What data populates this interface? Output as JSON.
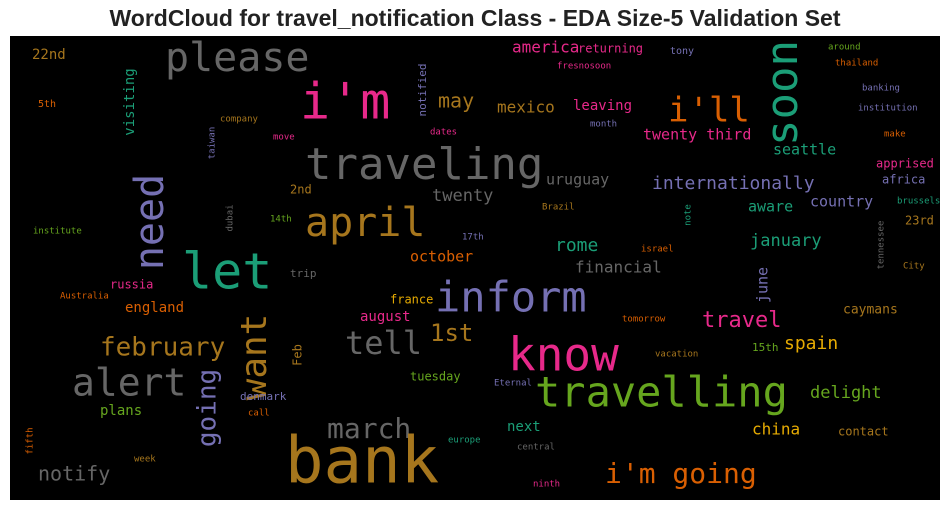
{
  "chart_data": {
    "type": "wordcloud",
    "title": "WordCloud for travel_notification Class - EDA Size-5 Validation Set",
    "background": "#000000",
    "words": [
      {
        "text": "please",
        "color": "#666666"
      },
      {
        "text": "i'm",
        "color": "#e7298a"
      },
      {
        "text": "traveling",
        "color": "#666666"
      },
      {
        "text": "soon",
        "color": "#1b9e77"
      },
      {
        "text": "i'll",
        "color": "#d95f02"
      },
      {
        "text": "may",
        "color": "#a6761d"
      },
      {
        "text": "mexico",
        "color": "#a6761d"
      },
      {
        "text": "america",
        "color": "#e7298a"
      },
      {
        "text": "returning",
        "color": "#e7298a"
      },
      {
        "text": "tony",
        "color": "#7570b3"
      },
      {
        "text": "around",
        "color": "#66a61e"
      },
      {
        "text": "thailand",
        "color": "#d95f02"
      },
      {
        "text": "22nd",
        "color": "#a6761d"
      },
      {
        "text": "5th",
        "color": "#d95f02"
      },
      {
        "text": "visiting",
        "color": "#1b9e77"
      },
      {
        "text": "company",
        "color": "#a6761d"
      },
      {
        "text": "taiwan",
        "color": "#7570b3"
      },
      {
        "text": "move",
        "color": "#e7298a"
      },
      {
        "text": "notified",
        "color": "#7570b3"
      },
      {
        "text": "fresnosoon",
        "color": "#e7298a"
      },
      {
        "text": "leaving",
        "color": "#e7298a"
      },
      {
        "text": "month",
        "color": "#7570b3"
      },
      {
        "text": "dates",
        "color": "#e7298a"
      },
      {
        "text": "banking",
        "color": "#7570b3"
      },
      {
        "text": "institution",
        "color": "#7570b3"
      },
      {
        "text": "make",
        "color": "#d95f02"
      },
      {
        "text": "twenty third",
        "color": "#e7298a"
      },
      {
        "text": "seattle",
        "color": "#1b9e77"
      },
      {
        "text": "apprised",
        "color": "#e7298a"
      },
      {
        "text": "africa",
        "color": "#7570b3"
      },
      {
        "text": "need",
        "color": "#7570b3"
      },
      {
        "text": "internationally",
        "color": "#7570b3"
      },
      {
        "text": "uruguay",
        "color": "#666666"
      },
      {
        "text": "twenty",
        "color": "#666666"
      },
      {
        "text": "2nd",
        "color": "#a6761d"
      },
      {
        "text": "april",
        "color": "#a6761d"
      },
      {
        "text": "country",
        "color": "#7570b3"
      },
      {
        "text": "aware",
        "color": "#1b9e77"
      },
      {
        "text": "brussels",
        "color": "#1b9e77"
      },
      {
        "text": "Brazil",
        "color": "#a6761d"
      },
      {
        "text": "note",
        "color": "#1b9e77"
      },
      {
        "text": "dubai",
        "color": "#666666"
      },
      {
        "text": "14th",
        "color": "#66a61e"
      },
      {
        "text": "23rd",
        "color": "#a6761d"
      },
      {
        "text": "institute",
        "color": "#66a61e"
      },
      {
        "text": "17th",
        "color": "#7570b3"
      },
      {
        "text": "tennessee",
        "color": "#666666"
      },
      {
        "text": "rome",
        "color": "#1b9e77"
      },
      {
        "text": "january",
        "color": "#1b9e77"
      },
      {
        "text": "israel",
        "color": "#d95f02"
      },
      {
        "text": "let",
        "color": "#1b9e77"
      },
      {
        "text": "october",
        "color": "#d95f02"
      },
      {
        "text": "financial",
        "color": "#666666"
      },
      {
        "text": "june",
        "color": "#7570b3"
      },
      {
        "text": "City",
        "color": "#a6761d"
      },
      {
        "text": "trip",
        "color": "#666666"
      },
      {
        "text": "russia",
        "color": "#e7298a"
      },
      {
        "text": "Australia",
        "color": "#d95f02"
      },
      {
        "text": "inform",
        "color": "#7570b3"
      },
      {
        "text": "france",
        "color": "#e6ab02"
      },
      {
        "text": "england",
        "color": "#d95f02"
      },
      {
        "text": "caymans",
        "color": "#a6761d"
      },
      {
        "text": "want",
        "color": "#a6761d"
      },
      {
        "text": "august",
        "color": "#e7298a"
      },
      {
        "text": "travel",
        "color": "#e7298a"
      },
      {
        "text": "tomorrow",
        "color": "#d95f02"
      },
      {
        "text": "1st",
        "color": "#a6761d"
      },
      {
        "text": "tell",
        "color": "#666666"
      },
      {
        "text": "february",
        "color": "#a6761d"
      },
      {
        "text": "know",
        "color": "#e7298a"
      },
      {
        "text": "Feb",
        "color": "#a6761d"
      },
      {
        "text": "spain",
        "color": "#e6ab02"
      },
      {
        "text": "15th",
        "color": "#66a61e"
      },
      {
        "text": "vacation",
        "color": "#a6761d"
      },
      {
        "text": "alert",
        "color": "#666666"
      },
      {
        "text": "going",
        "color": "#7570b3"
      },
      {
        "text": "tuesday",
        "color": "#66a61e"
      },
      {
        "text": "Eternal",
        "color": "#7570b3"
      },
      {
        "text": "travelling",
        "color": "#66a61e"
      },
      {
        "text": "delight",
        "color": "#66a61e"
      },
      {
        "text": "denmark",
        "color": "#7570b3"
      },
      {
        "text": "plans",
        "color": "#66a61e"
      },
      {
        "text": "call",
        "color": "#d95f02"
      },
      {
        "text": "march",
        "color": "#666666"
      },
      {
        "text": "next",
        "color": "#1b9e77"
      },
      {
        "text": "china",
        "color": "#e6ab02"
      },
      {
        "text": "contact",
        "color": "#a6761d"
      },
      {
        "text": "fifth",
        "color": "#d95f02"
      },
      {
        "text": "europe",
        "color": "#1b9e77"
      },
      {
        "text": "central",
        "color": "#666666"
      },
      {
        "text": "bank",
        "color": "#a6761d"
      },
      {
        "text": "week",
        "color": "#a6761d"
      },
      {
        "text": "notify",
        "color": "#666666"
      },
      {
        "text": "i'm going",
        "color": "#d95f02"
      },
      {
        "text": "ninth",
        "color": "#e7298a"
      }
    ]
  }
}
